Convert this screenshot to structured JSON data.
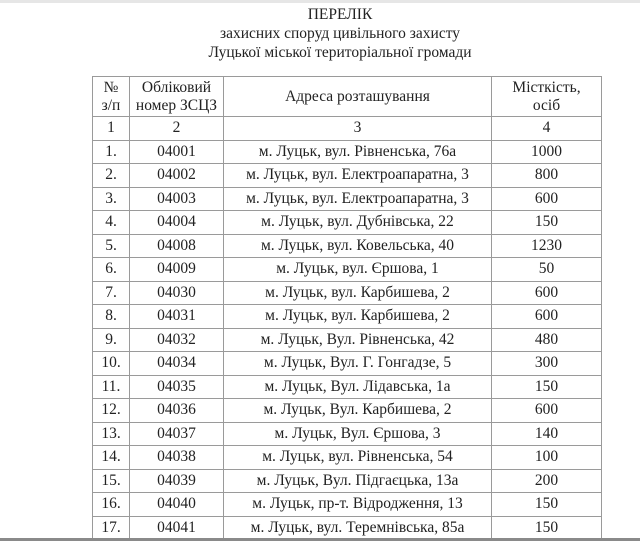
{
  "title": {
    "line1": "ПЕРЕЛІК",
    "line2": "захисних споруд цивільного захисту",
    "line3": "Луцької міської територіальної громади"
  },
  "table": {
    "headers": [
      [
        "№",
        "з/п"
      ],
      [
        "Обліковий",
        "номер ЗСЦЗ"
      ],
      [
        "Адреса розташування"
      ],
      [
        "Місткість,",
        "осіб"
      ]
    ],
    "column_numbers": [
      "1",
      "2",
      "3",
      "4"
    ],
    "rows": [
      [
        "1.",
        "04001",
        "м. Луцьк, вул. Рівненська, 76а",
        "1000"
      ],
      [
        "2.",
        "04002",
        "м. Луцьк, вул. Електроапаратна, 3",
        "800"
      ],
      [
        "3.",
        "04003",
        "м. Луцьк, вул. Електроапаратна, 3",
        "600"
      ],
      [
        "4.",
        "04004",
        "м. Луцьк, вул. Дубнівська, 22",
        "150"
      ],
      [
        "5.",
        "04008",
        "м. Луцьк, вул. Ковельська, 40",
        "1230"
      ],
      [
        "6.",
        "04009",
        "м. Луцьк, вул. Єршова, 1",
        "50"
      ],
      [
        "7.",
        "04030",
        "м. Луцьк, вул. Карбишева, 2",
        "600"
      ],
      [
        "8.",
        "04031",
        "м. Луцьк, вул. Карбишева, 2",
        "600"
      ],
      [
        "9.",
        "04032",
        "м. Луцьк, Вул. Рівненська, 42",
        "480"
      ],
      [
        "10.",
        "04034",
        "м. Луцьк, Вул. Г. Гонгадзе, 5",
        "300"
      ],
      [
        "11.",
        "04035",
        "м. Луцьк, Вул. Лідавська, 1а",
        "150"
      ],
      [
        "12.",
        "04036",
        "м. Луцьк, Вул. Карбишева, 2",
        "600"
      ],
      [
        "13.",
        "04037",
        "м. Луцьк, Вул. Єршова, 3",
        "140"
      ],
      [
        "14.",
        "04038",
        "м. Луцьк, вул. Рівненська, 54",
        "100"
      ],
      [
        "15.",
        "04039",
        "м. Луцьк, Вул. Підгаєцька, 13а",
        "200"
      ],
      [
        "16.",
        "04040",
        "м. Луцьк, пр-т. Відродження, 13",
        "150"
      ],
      [
        "17.",
        "04041",
        "м. Луцьк, вул. Теремнівська, 85а",
        "150"
      ]
    ]
  }
}
